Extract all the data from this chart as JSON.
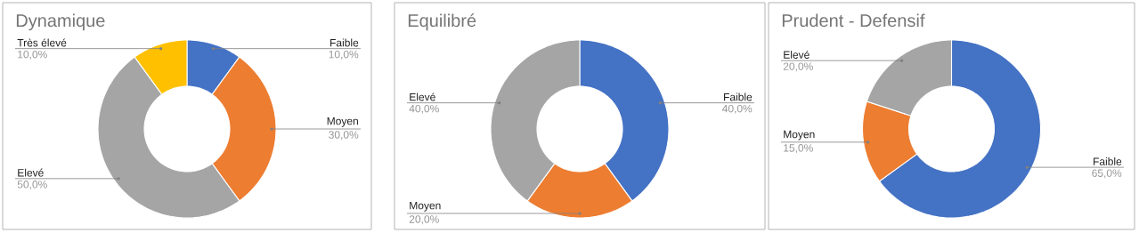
{
  "chart_data": [
    {
      "type": "donut",
      "title": "Dynamique",
      "categories": [
        "Faible",
        "Moyen",
        "Elevé",
        "Très élevé"
      ],
      "values": [
        10,
        30,
        50,
        10
      ],
      "value_labels": [
        "10,0%",
        "30,0%",
        "50,0%",
        "10,0%"
      ],
      "colors": [
        "#4472c4",
        "#ed7d31",
        "#a5a5a5",
        "#ffc000"
      ]
    },
    {
      "type": "donut",
      "title": "Equilibré",
      "categories": [
        "Faible",
        "Moyen",
        "Elevé"
      ],
      "values": [
        40,
        20,
        40
      ],
      "value_labels": [
        "40,0%",
        "20,0%",
        "40,0%"
      ],
      "colors": [
        "#4472c4",
        "#ed7d31",
        "#a5a5a5"
      ]
    },
    {
      "type": "donut",
      "title": "Prudent - Defensif",
      "categories": [
        "Faible",
        "Moyen",
        "Elevé"
      ],
      "values": [
        65,
        15,
        20
      ],
      "value_labels": [
        "65,0%",
        "15,0%",
        "20,0%"
      ],
      "colors": [
        "#4472c4",
        "#ed7d31",
        "#a5a5a5"
      ]
    }
  ]
}
